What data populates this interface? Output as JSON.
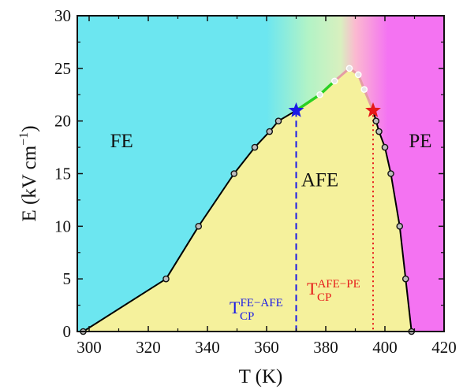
{
  "chart_data": {
    "type": "line",
    "xlabel": "T (K)",
    "ylabel": "E (kV cm",
    "ylabel_sup": "−1",
    "ylabel_tail": ")",
    "xlim": [
      296,
      420
    ],
    "ylim": [
      0,
      30
    ],
    "xticks": [
      "300",
      "320",
      "340",
      "360",
      "380",
      "400",
      "420"
    ],
    "yticks": [
      "0",
      "5",
      "10",
      "15",
      "20",
      "25",
      "30"
    ],
    "grid": false,
    "regions": [
      {
        "label": "FE",
        "color": "#6ce6f0",
        "label_at": [
          311,
          17.5
        ]
      },
      {
        "label": "AFE",
        "color": "#f5f19c",
        "label_at": [
          378,
          13.8
        ]
      },
      {
        "label": "PE",
        "color": "#f473f2",
        "label_at": [
          412,
          17.5
        ]
      }
    ],
    "series": [
      {
        "role": "FE-AFE boundary",
        "color": "#000000",
        "points": [
          [
            298,
            0
          ],
          [
            326,
            5
          ],
          [
            337,
            10
          ],
          [
            349,
            15
          ],
          [
            356,
            17.5
          ],
          [
            361,
            19
          ],
          [
            364,
            20
          ]
        ]
      },
      {
        "role": "FE-AFE-PE boundary (above critical points)",
        "color": "#2bd023",
        "points": [
          [
            370,
            21
          ],
          [
            378,
            22.5
          ],
          [
            383,
            23.8
          ],
          [
            388,
            25
          ],
          [
            391,
            24.4
          ],
          [
            393,
            23
          ]
        ]
      },
      {
        "role": "AFE-PE boundary",
        "color": "#000000",
        "points": [
          [
            397,
            20
          ],
          [
            398,
            19
          ],
          [
            400,
            17.5
          ],
          [
            402,
            15
          ],
          [
            405,
            10
          ],
          [
            407,
            5
          ],
          [
            409,
            0
          ]
        ]
      }
    ],
    "critical_points": [
      {
        "name": "FE-AFE",
        "label_main": "T",
        "label_sub": "CP",
        "label_sup": "FE−AFE",
        "x": 370,
        "y": 21,
        "color": "#1a1ae6",
        "line": "dashed"
      },
      {
        "name": "AFE-PE",
        "label_main": "T",
        "label_sub": "CP",
        "label_sup": "AFE−PE",
        "x": 396,
        "y": 21,
        "color": "#e61919",
        "line": "dotted"
      }
    ]
  }
}
